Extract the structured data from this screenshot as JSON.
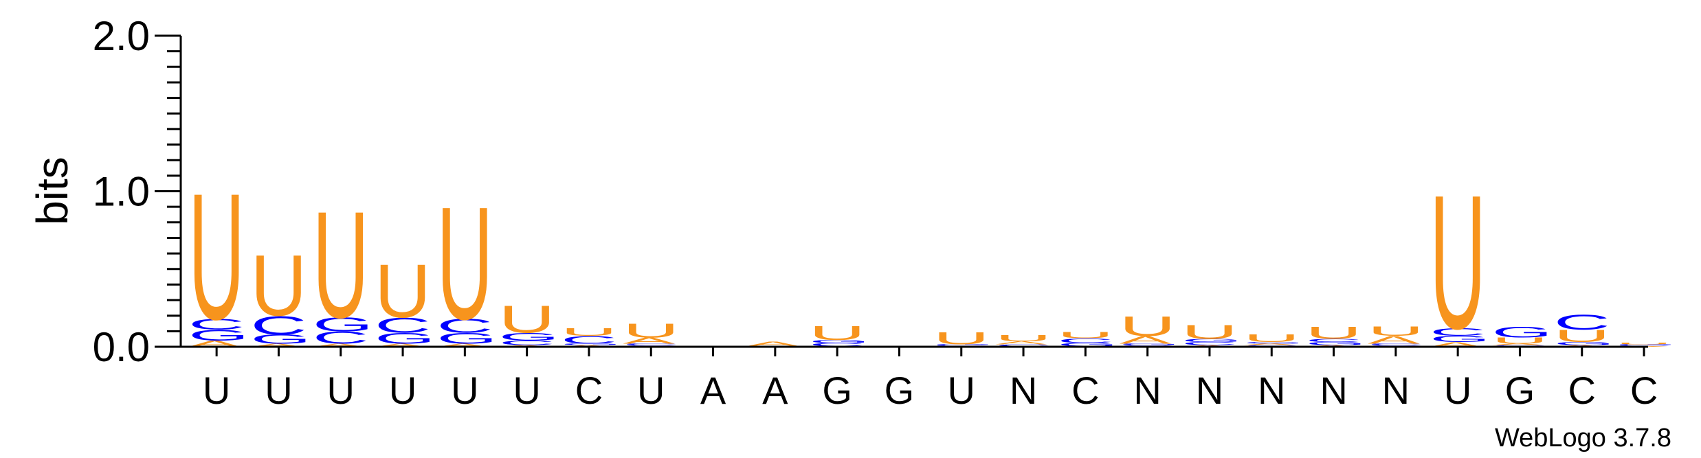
{
  "chart_data": {
    "type": "sequence-logo",
    "ylabel": "bits",
    "ylim": [
      0,
      2.0
    ],
    "y_ticks": [
      "0.0",
      "1.0",
      "2.0"
    ],
    "y_tick_values": [
      0,
      1,
      2
    ],
    "x_tick_labels": [
      "U",
      "U",
      "U",
      "U",
      "U",
      "U",
      "C",
      "U",
      "A",
      "A",
      "G",
      "G",
      "U",
      "N",
      "C",
      "N",
      "N",
      "N",
      "N",
      "N",
      "U",
      "G",
      "C",
      "C"
    ],
    "footer": "WebLogo 3.7.8",
    "colors": {
      "U": "#f7941d",
      "A": "#f7941d",
      "C": "#0000ff",
      "G": "#0000ff"
    },
    "stacks": [
      [
        {
          "l": "A",
          "h": 0.04
        },
        {
          "l": "G",
          "h": 0.07
        },
        {
          "l": "C",
          "h": 0.07
        },
        {
          "l": "U",
          "h": 0.83
        }
      ],
      [
        {
          "l": "A",
          "h": 0.02
        },
        {
          "l": "G",
          "h": 0.06
        },
        {
          "l": "C",
          "h": 0.12
        },
        {
          "l": "U",
          "h": 0.4
        }
      ],
      [
        {
          "l": "A",
          "h": 0.02
        },
        {
          "l": "C",
          "h": 0.08
        },
        {
          "l": "G",
          "h": 0.09
        },
        {
          "l": "U",
          "h": 0.7
        }
      ],
      [
        {
          "l": "A",
          "h": 0.02
        },
        {
          "l": "G",
          "h": 0.07
        },
        {
          "l": "C",
          "h": 0.1
        },
        {
          "l": "U",
          "h": 0.35
        }
      ],
      [
        {
          "l": "A",
          "h": 0.02
        },
        {
          "l": "G",
          "h": 0.07
        },
        {
          "l": "C",
          "h": 0.09
        },
        {
          "l": "U",
          "h": 0.74
        }
      ],
      [
        {
          "l": "A",
          "h": 0.01
        },
        {
          "l": "C",
          "h": 0.03
        },
        {
          "l": "G",
          "h": 0.05
        },
        {
          "l": "U",
          "h": 0.18
        }
      ],
      [
        {
          "l": "A",
          "h": 0.01
        },
        {
          "l": "G",
          "h": 0.01
        },
        {
          "l": "C",
          "h": 0.05
        },
        {
          "l": "U",
          "h": 0.05
        }
      ],
      [
        {
          "l": "G",
          "h": 0.01
        },
        {
          "l": "C",
          "h": 0.01
        },
        {
          "l": "A",
          "h": 0.04
        },
        {
          "l": "U",
          "h": 0.09
        }
      ],
      [],
      [
        {
          "l": "G",
          "h": 0.005
        },
        {
          "l": "A",
          "h": 0.03
        }
      ],
      [
        {
          "l": "A",
          "h": 0.005
        },
        {
          "l": "C",
          "h": 0.02
        },
        {
          "l": "G",
          "h": 0.02
        },
        {
          "l": "U",
          "h": 0.09
        }
      ],
      [],
      [
        {
          "l": "A",
          "h": 0.005
        },
        {
          "l": "C",
          "h": 0.005
        },
        {
          "l": "G",
          "h": 0.005
        },
        {
          "l": "U",
          "h": 0.08
        }
      ],
      [
        {
          "l": "G",
          "h": 0.005
        },
        {
          "l": "C",
          "h": 0.01
        },
        {
          "l": "A",
          "h": 0.02
        },
        {
          "l": "U",
          "h": 0.04
        }
      ],
      [
        {
          "l": "A",
          "h": 0.005
        },
        {
          "l": "G",
          "h": 0.02
        },
        {
          "l": "C",
          "h": 0.03
        },
        {
          "l": "U",
          "h": 0.04
        }
      ],
      [
        {
          "l": "C",
          "h": 0.01
        },
        {
          "l": "G",
          "h": 0.01
        },
        {
          "l": "A",
          "h": 0.05
        },
        {
          "l": "U",
          "h": 0.13
        }
      ],
      [
        {
          "l": "A",
          "h": 0.01
        },
        {
          "l": "C",
          "h": 0.02
        },
        {
          "l": "G",
          "h": 0.02
        },
        {
          "l": "U",
          "h": 0.09
        }
      ],
      [
        {
          "l": "C",
          "h": 0.01
        },
        {
          "l": "A",
          "h": 0.01
        },
        {
          "l": "G",
          "h": 0.01
        },
        {
          "l": "U",
          "h": 0.05
        }
      ],
      [
        {
          "l": "A",
          "h": 0.01
        },
        {
          "l": "G",
          "h": 0.02
        },
        {
          "l": "C",
          "h": 0.02
        },
        {
          "l": "U",
          "h": 0.08
        }
      ],
      [
        {
          "l": "G",
          "h": 0.01
        },
        {
          "l": "C",
          "h": 0.01
        },
        {
          "l": "A",
          "h": 0.05
        },
        {
          "l": "U",
          "h": 0.06
        }
      ],
      [
        {
          "l": "A",
          "h": 0.03
        },
        {
          "l": "G",
          "h": 0.04
        },
        {
          "l": "C",
          "h": 0.05
        },
        {
          "l": "U",
          "h": 0.88
        }
      ],
      [
        {
          "l": "C",
          "h": 0.01
        },
        {
          "l": "A",
          "h": 0.01
        },
        {
          "l": "U",
          "h": 0.04
        },
        {
          "l": "G",
          "h": 0.07
        }
      ],
      [
        {
          "l": "A",
          "h": 0.01
        },
        {
          "l": "G",
          "h": 0.02
        },
        {
          "l": "U",
          "h": 0.08
        },
        {
          "l": "C",
          "h": 0.1
        }
      ],
      [
        {
          "l": "A",
          "h": 0.005
        },
        {
          "l": "C",
          "h": 0.005
        },
        {
          "l": "G",
          "h": 0.005
        },
        {
          "l": "U",
          "h": 0.01
        }
      ]
    ]
  }
}
